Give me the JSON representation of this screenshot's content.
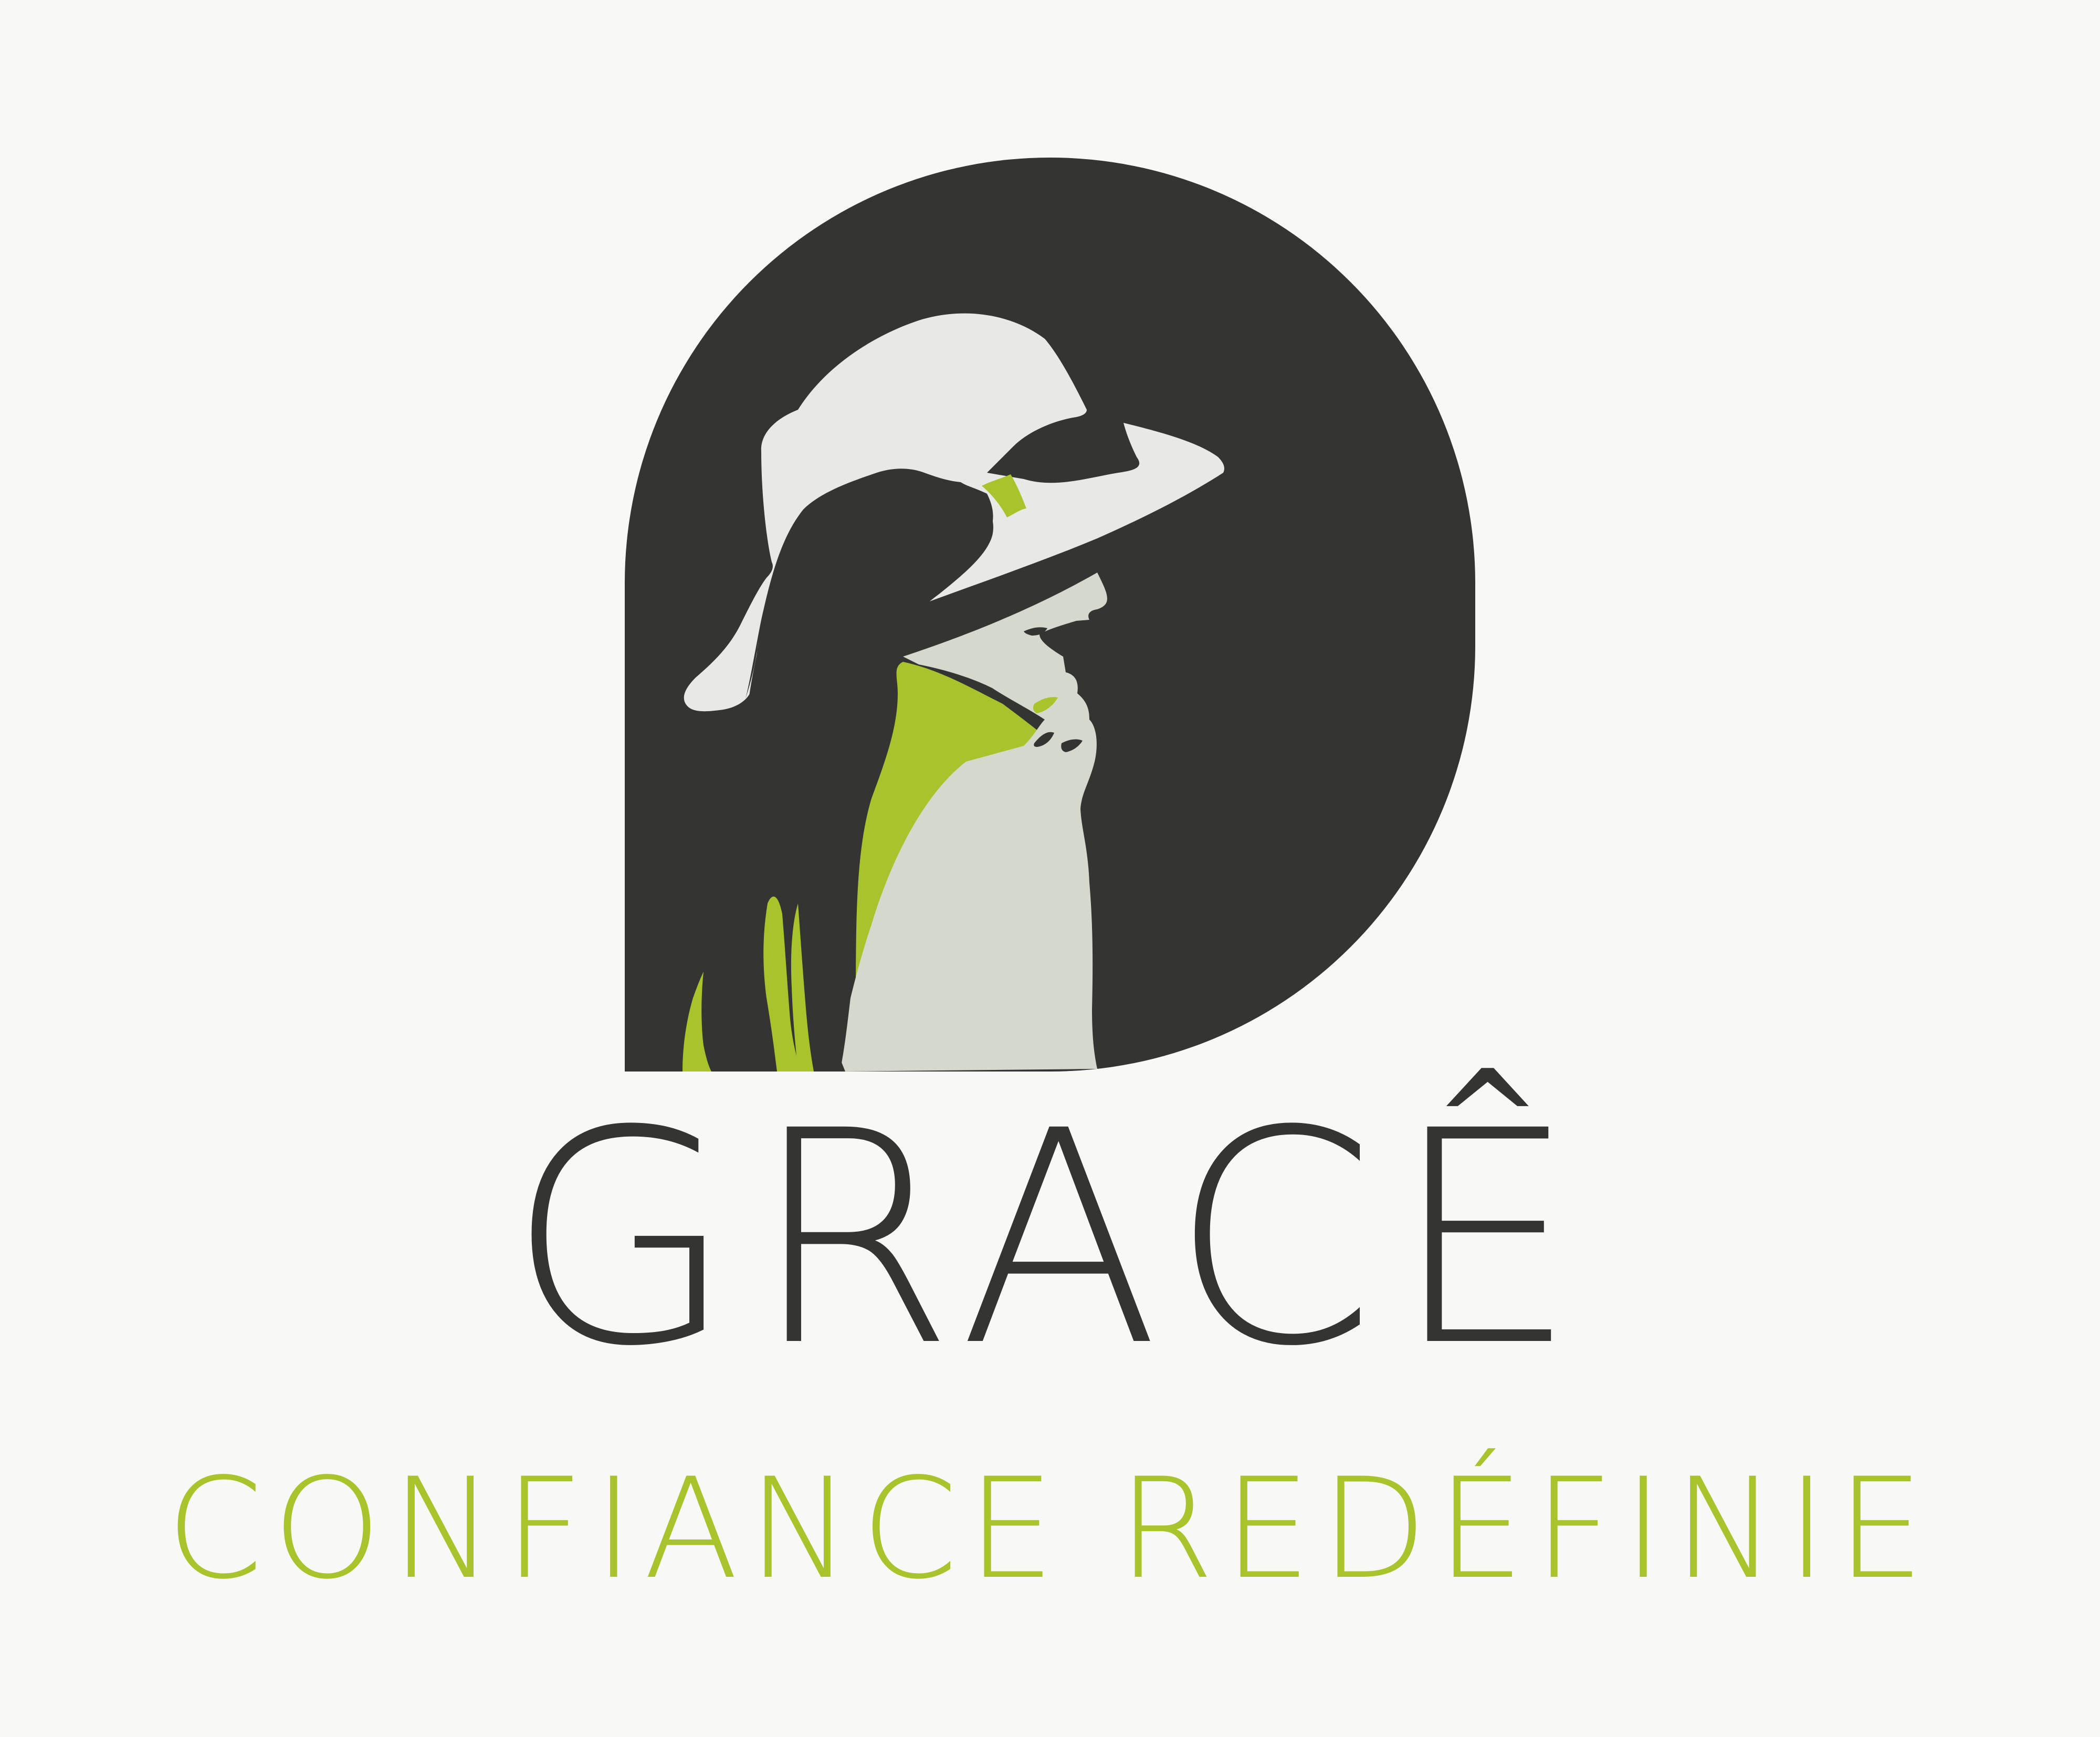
{
  "brand": {
    "name": "GRACÊ",
    "tagline": "CONFIANCE REDÉFINIE"
  },
  "colors": {
    "background": "#f8f8f7",
    "dark": "#343432",
    "accent": "#a8c42c",
    "hat": "#e8e9e4",
    "skin": "#d5d8cc"
  },
  "logo": {
    "icon": "woman-in-hat-silhouette-icon"
  }
}
